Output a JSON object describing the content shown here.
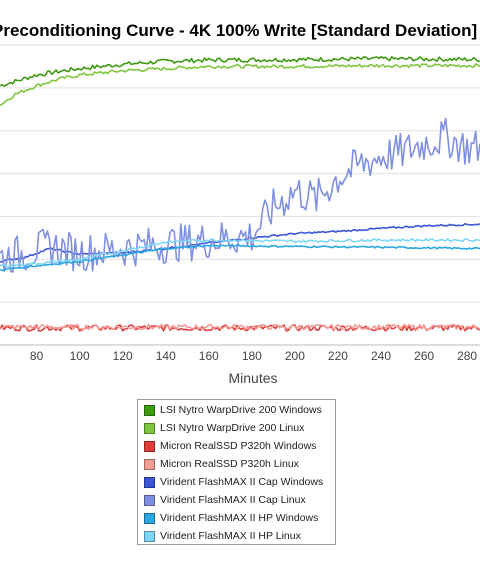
{
  "chart_data": {
    "type": "line",
    "title": "Preconditioning Curve - 4K 100% Write [Standard Deviation]",
    "xlabel": "Minutes",
    "ylabel": "",
    "xlim": [
      63,
      286
    ],
    "ylim": [
      0,
      7
    ],
    "x_ticks": [
      80,
      100,
      120,
      140,
      160,
      180,
      200,
      220,
      240,
      260,
      280
    ],
    "legend_position": "bottom",
    "series": [
      {
        "name": "LSI Nytro WarpDrive 200 Windows",
        "color": "#3e9a10",
        "points": [
          [
            63,
            6.05
          ],
          [
            70,
            6.15
          ],
          [
            80,
            6.3
          ],
          [
            90,
            6.38
          ],
          [
            100,
            6.45
          ],
          [
            110,
            6.5
          ],
          [
            120,
            6.55
          ],
          [
            140,
            6.62
          ],
          [
            160,
            6.65
          ],
          [
            200,
            6.66
          ],
          [
            240,
            6.68
          ],
          [
            286,
            6.66
          ]
        ],
        "noise": 0.05
      },
      {
        "name": "LSI Nytro WarpDrive 200 Linux",
        "color": "#7dc63e",
        "points": [
          [
            63,
            5.6
          ],
          [
            70,
            5.85
          ],
          [
            80,
            6.05
          ],
          [
            90,
            6.2
          ],
          [
            100,
            6.3
          ],
          [
            120,
            6.4
          ],
          [
            140,
            6.45
          ],
          [
            160,
            6.5
          ],
          [
            200,
            6.5
          ],
          [
            240,
            6.52
          ],
          [
            286,
            6.52
          ]
        ],
        "noise": 0.04
      },
      {
        "name": "Micron RealSSD P320h Windows",
        "color": "#e03c3c",
        "points": [
          [
            63,
            0.4
          ],
          [
            286,
            0.4
          ]
        ],
        "noise": 0.07
      },
      {
        "name": "Micron RealSSD P320h Linux",
        "color": "#f39c96",
        "points": [
          [
            63,
            0.42
          ],
          [
            286,
            0.42
          ]
        ],
        "noise": 0.06
      },
      {
        "name": "Virident FlashMAX II Cap Windows",
        "color": "#3a56d6",
        "points": [
          [
            63,
            1.95
          ],
          [
            75,
            2.05
          ],
          [
            86,
            2.25
          ],
          [
            100,
            2.12
          ],
          [
            120,
            2.15
          ],
          [
            140,
            2.25
          ],
          [
            160,
            2.38
          ],
          [
            180,
            2.5
          ],
          [
            200,
            2.6
          ],
          [
            220,
            2.65
          ],
          [
            240,
            2.72
          ],
          [
            260,
            2.78
          ],
          [
            286,
            2.82
          ]
        ],
        "noise": 0.02
      },
      {
        "name": "Virident FlashMAX II Cap Linux",
        "color": "#8090e0",
        "points": [
          [
            63,
            2.05
          ],
          [
            75,
            2.15
          ],
          [
            86,
            2.3
          ],
          [
            100,
            2.15
          ],
          [
            120,
            2.25
          ],
          [
            140,
            2.35
          ],
          [
            160,
            2.45
          ],
          [
            180,
            2.55
          ],
          [
            190,
            3.2
          ],
          [
            200,
            3.6
          ],
          [
            210,
            3.4
          ],
          [
            220,
            3.9
          ],
          [
            230,
            4.2
          ],
          [
            240,
            4.4
          ],
          [
            250,
            4.5
          ],
          [
            260,
            4.7
          ],
          [
            270,
            4.85
          ],
          [
            280,
            4.6
          ],
          [
            286,
            4.6
          ]
        ],
        "noise": 0.45
      },
      {
        "name": "Virident FlashMAX II HP Windows",
        "color": "#2aa6e0",
        "points": [
          [
            63,
            1.75
          ],
          [
            80,
            1.85
          ],
          [
            100,
            1.95
          ],
          [
            120,
            2.1
          ],
          [
            140,
            2.25
          ],
          [
            160,
            2.32
          ],
          [
            200,
            2.3
          ],
          [
            240,
            2.28
          ],
          [
            286,
            2.25
          ]
        ],
        "noise": 0.02
      },
      {
        "name": "Virident FlashMAX II HP Linux",
        "color": "#80d6f6",
        "points": [
          [
            63,
            1.85
          ],
          [
            80,
            1.9
          ],
          [
            100,
            2.0
          ],
          [
            120,
            2.2
          ],
          [
            140,
            2.4
          ],
          [
            160,
            2.45
          ],
          [
            200,
            2.42
          ],
          [
            240,
            2.45
          ],
          [
            286,
            2.45
          ]
        ],
        "noise": 0.03
      }
    ]
  }
}
